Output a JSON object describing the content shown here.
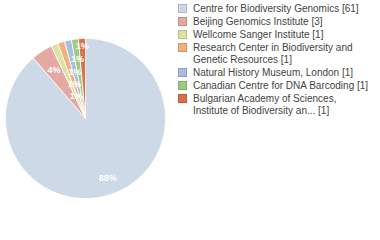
{
  "chart_data": {
    "type": "pie",
    "categories": [
      "Centre for Biodiversity Genomics [61]",
      "Beijing Genomics Institute [3]",
      "Wellcome Sanger Institute [1]",
      "Research Center in Biodiversity and Genetic Resources [1]",
      "Natural History Museum, London [1]",
      "Canadian Centre for DNA Barcoding [1]",
      "Bulgarian Academy of Sciences, Institute of Biodiversity an... [1]"
    ],
    "values": [
      88.4,
      4.3,
      1.4,
      1.4,
      1.4,
      1.4,
      1.4
    ],
    "value_labels": [
      "88%",
      "4%",
      "1%",
      "1%",
      "1%",
      "1%",
      "1%"
    ],
    "colors": [
      "#cdd9e6",
      "#e3a9a2",
      "#dde3a2",
      "#efb17e",
      "#a9bde0",
      "#9ccd7e",
      "#d8714c"
    ],
    "data_labels": true,
    "legend": "right"
  }
}
